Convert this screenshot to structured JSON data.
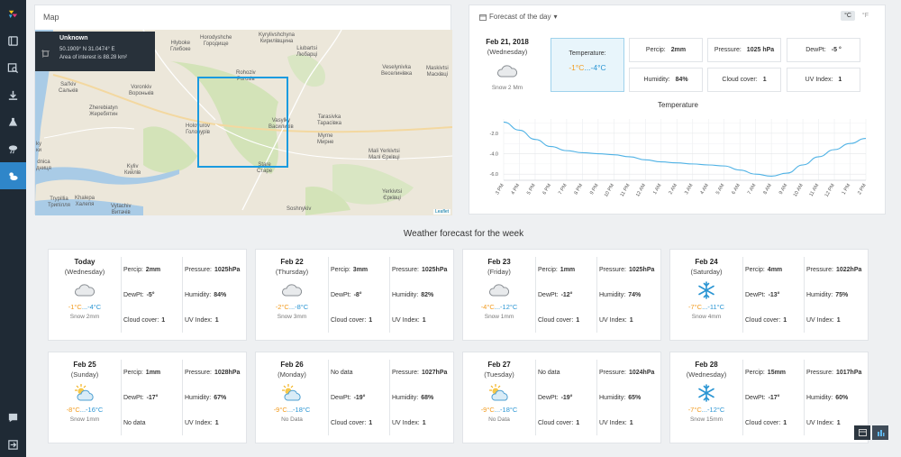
{
  "sidebar": {
    "items": [
      {
        "icon": "logo-icon"
      },
      {
        "icon": "book-icon"
      },
      {
        "icon": "image-search-icon"
      },
      {
        "icon": "download-icon"
      },
      {
        "icon": "flask-icon"
      },
      {
        "icon": "storm-icon"
      },
      {
        "icon": "weather-icon",
        "active": true
      }
    ],
    "bottom": [
      {
        "icon": "chat-icon"
      },
      {
        "icon": "logout-icon"
      }
    ]
  },
  "map": {
    "title": "Map",
    "tooltip": {
      "title": "Unknown",
      "coords": "50.1909° N 31.0474° E",
      "area": "Area of interest is 88.28 km²"
    },
    "attribution": "Leaflet",
    "places": [
      {
        "l1": "Hlyboke",
        "l2": "Глибоке",
        "x": 150,
        "y": 12
      },
      {
        "l1": "Horodyshche",
        "l2": "Городище",
        "x": 183,
        "y": 6
      },
      {
        "l1": "Kyrylivshchyna",
        "l2": "Кирилівщина",
        "x": 248,
        "y": 3
      },
      {
        "l1": "Liubartsi",
        "l2": "Любарці",
        "x": 290,
        "y": 18
      },
      {
        "l1": "Rohoziv",
        "l2": "Рогозів",
        "x": 223,
        "y": 45
      },
      {
        "l1": "Veselynivka",
        "l2": "Веселинівка",
        "x": 384,
        "y": 39
      },
      {
        "l1": "Maskivtsi",
        "l2": "Масківці",
        "x": 434,
        "y": 40
      },
      {
        "l1": "Sal'kiv",
        "l2": "Сальків",
        "x": 26,
        "y": 58
      },
      {
        "l1": "Voronkiv",
        "l2": "Вороньків",
        "x": 104,
        "y": 61
      },
      {
        "l1": "Zherebiatyn",
        "l2": "Жеребятин",
        "x": 60,
        "y": 84
      },
      {
        "l1": "Holovurov",
        "l2": "Головурів",
        "x": 167,
        "y": 104
      },
      {
        "l1": "Vasylky",
        "l2": "Василиків",
        "x": 259,
        "y": 98
      },
      {
        "l1": "Tarasivka",
        "l2": "Тарасівка",
        "x": 313,
        "y": 94
      },
      {
        "l1": "Myrne",
        "l2": "Мирне",
        "x": 313,
        "y": 115
      },
      {
        "l1": "Mali Yerkivtsi",
        "l2": "Малі Єрківці",
        "x": 370,
        "y": 132
      },
      {
        "l1": "Stare",
        "l2": "Старе",
        "x": 246,
        "y": 147
      },
      {
        "l1": "Kyliv",
        "l2": "Кийлів",
        "x": 99,
        "y": 149
      },
      {
        "l1": "Yerkivtsi",
        "l2": "Єрківці",
        "x": 385,
        "y": 177
      },
      {
        "l1": "Trypillia",
        "l2": "Трипілля",
        "x": 14,
        "y": 185
      },
      {
        "l1": "Khalepa",
        "l2": "Халепя",
        "x": 44,
        "y": 184
      },
      {
        "l1": "Vytachiv",
        "l2": "Витачів",
        "x": 84,
        "y": 193
      },
      {
        "l1": "Soshnykiv",
        "l2": "",
        "x": 279,
        "y": 196
      },
      {
        "l1": "dnica",
        "l2": "дниця",
        "x": 1,
        "y": 144
      },
      {
        "l1": "ky",
        "l2": "ки",
        "x": 1,
        "y": 124
      }
    ]
  },
  "forecast": {
    "header": "Forecast of the day",
    "units": {
      "c": "°C",
      "f": "°F"
    },
    "today": {
      "date": "Feb 21, 2018",
      "day": "(Wednesday)",
      "condition": "Snow 2 Mm",
      "temp_label": "Temperature:",
      "temp_hi": "-1°C",
      "temp_sep": "...",
      "temp_lo": "-4°C",
      "percip_label": "Percip:",
      "percip": "2mm",
      "pressure_label": "Pressure:",
      "pressure": "1025 hPa",
      "dewpt_label": "DewPt:",
      "dewpt": "-5 °",
      "humidity_label": "Humidity:",
      "humidity": "84%",
      "cloud_label": "Cloud cover:",
      "cloud": "1",
      "uv_label": "UV Index:",
      "uv": "1"
    }
  },
  "chart_data": {
    "type": "line",
    "title": "Temperature",
    "x": [
      "3 PM",
      "4 PM",
      "5 PM",
      "6 PM",
      "7 PM",
      "8 PM",
      "9 PM",
      "10 PM",
      "11 PM",
      "12 AM",
      "1 AM",
      "2 AM",
      "3 AM",
      "4 AM",
      "5 AM",
      "6 AM",
      "7 AM",
      "8 AM",
      "9 AM",
      "10 AM",
      "11 AM",
      "12 PM",
      "1 PM",
      "2 PM"
    ],
    "series": [
      {
        "values": [
          -0.9,
          -1.7,
          -2.6,
          -3.3,
          -3.7,
          -3.9,
          -4.0,
          -4.1,
          -4.3,
          -4.6,
          -4.8,
          -4.9,
          -5.0,
          -5.1,
          -5.2,
          -5.6,
          -6.0,
          -6.2,
          -5.9,
          -5.1,
          -4.3,
          -3.6,
          -3.0,
          -2.5
        ]
      }
    ],
    "yticks": [
      "-2.0",
      "-4.0",
      "-6.0"
    ],
    "ylim": [
      -6.6,
      -0.6
    ],
    "grid": true,
    "color": "#4fb2e5"
  },
  "week": {
    "title": "Weather forecast for the week",
    "days": [
      {
        "date": "Today",
        "day": "(Wednesday)",
        "icon": "cloud-icon",
        "hi": "-1°C",
        "lo": "-4°C",
        "cond": "Snow 2mm",
        "cells": [
          [
            "Percip:",
            "2mm"
          ],
          [
            "Pressure:",
            "1025hPa"
          ],
          [
            "DewPt:",
            "-5°"
          ],
          [
            "Humidity:",
            "84%"
          ],
          [
            "Cloud cover:",
            "1"
          ],
          [
            "UV Index:",
            "1"
          ]
        ]
      },
      {
        "date": "Feb 22",
        "day": "(Thursday)",
        "icon": "cloud-icon",
        "hi": "-2°C",
        "lo": "-8°C",
        "cond": "Snow 3mm",
        "cells": [
          [
            "Percip:",
            "3mm"
          ],
          [
            "Pressure:",
            "1025hPa"
          ],
          [
            "DewPt:",
            "-8°"
          ],
          [
            "Humidity:",
            "82%"
          ],
          [
            "Cloud cover:",
            "1"
          ],
          [
            "UV Index:",
            "1"
          ]
        ]
      },
      {
        "date": "Feb 23",
        "day": "(Friday)",
        "icon": "cloud-icon",
        "hi": "-4°C",
        "lo": "-12°C",
        "cond": "Snow 1mm",
        "cells": [
          [
            "Percip:",
            "1mm"
          ],
          [
            "Pressure:",
            "1025hPa"
          ],
          [
            "DewPt:",
            "-12°"
          ],
          [
            "Humidity:",
            "74%"
          ],
          [
            "Cloud cover:",
            "1"
          ],
          [
            "UV Index:",
            "1"
          ]
        ]
      },
      {
        "date": "Feb 24",
        "day": "(Saturday)",
        "icon": "snowflake-icon",
        "hi": "-7°C",
        "lo": "-11°C",
        "cond": "Snow 4mm",
        "cells": [
          [
            "Percip:",
            "4mm"
          ],
          [
            "Pressure:",
            "1022hPa"
          ],
          [
            "DewPt:",
            "-13°"
          ],
          [
            "Humidity:",
            "75%"
          ],
          [
            "Cloud cover:",
            "1"
          ],
          [
            "UV Index:",
            "1"
          ]
        ]
      },
      {
        "date": "Feb 25",
        "day": "(Sunday)",
        "icon": "sun-cloud-icon",
        "hi": "-8°C",
        "lo": "-16°C",
        "cond": "Snow 1mm",
        "cells": [
          [
            "Percip:",
            "1mm"
          ],
          [
            "Pressure:",
            "1028hPa"
          ],
          [
            "DewPt:",
            "-17°"
          ],
          [
            "Humidity:",
            "67%"
          ],
          [
            "No data",
            ""
          ],
          [
            "UV Index:",
            "1"
          ]
        ]
      },
      {
        "date": "Feb 26",
        "day": "(Monday)",
        "icon": "sun-cloud-icon",
        "hi": "-9°C",
        "lo": "-18°C",
        "cond": "No Data",
        "cells": [
          [
            "No data",
            ""
          ],
          [
            "Pressure:",
            "1027hPa"
          ],
          [
            "DewPt:",
            "-19°"
          ],
          [
            "Humidity:",
            "68%"
          ],
          [
            "Cloud cover:",
            "1"
          ],
          [
            "UV Index:",
            "1"
          ]
        ]
      },
      {
        "date": "Feb 27",
        "day": "(Tuesday)",
        "icon": "sun-cloud-icon",
        "hi": "-9°C",
        "lo": "-18°C",
        "cond": "No Data",
        "cells": [
          [
            "No data",
            ""
          ],
          [
            "Pressure:",
            "1024hPa"
          ],
          [
            "DewPt:",
            "-19°"
          ],
          [
            "Humidity:",
            "65%"
          ],
          [
            "Cloud cover:",
            "1"
          ],
          [
            "UV Index:",
            "1"
          ]
        ]
      },
      {
        "date": "Feb 28",
        "day": "(Wednesday)",
        "icon": "snowflake-icon",
        "hi": "-7°C",
        "lo": "-12°C",
        "cond": "Snow 15mm",
        "cells": [
          [
            "Percip:",
            "15mm"
          ],
          [
            "Pressure:",
            "1017hPa"
          ],
          [
            "DewPt:",
            "-17°"
          ],
          [
            "Humidity:",
            "60%"
          ],
          [
            "Cloud cover:",
            "1"
          ],
          [
            "UV Index:",
            "1"
          ]
        ]
      }
    ]
  },
  "view_toggle": {
    "icons": [
      "table-view-icon",
      "chart-view-icon"
    ]
  }
}
